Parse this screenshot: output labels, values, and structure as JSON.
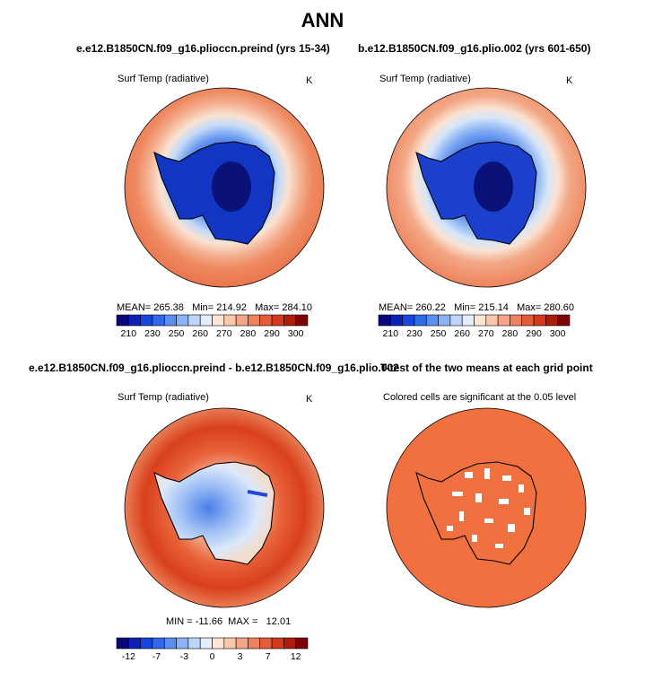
{
  "figure": {
    "title": "ANN"
  },
  "chart_data": [
    {
      "type": "heatmap",
      "projection": "south-polar-stereographic",
      "title": "e.e12.B1850CN.f09_g16.plioccn.preind (yrs 15-34)",
      "variable": "Surf Temp (radiative)",
      "units": "K",
      "stats_text": "MEAN= 265.38   Min= 214.92   Max= 284.10",
      "stats": {
        "mean": 265.38,
        "min": 214.92,
        "max": 284.1
      },
      "colorbar": {
        "tick_labels": [
          "210",
          "230",
          "250",
          "260",
          "270",
          "280",
          "290",
          "300"
        ],
        "colors": [
          "#08087a",
          "#0c22b4",
          "#1846dc",
          "#2f6ae8",
          "#5a8ff0",
          "#8cb2f5",
          "#bcd5f8",
          "#e4eefb",
          "#fbe6d8",
          "#f8c8ad",
          "#f4a686",
          "#ee8260",
          "#e65c3a",
          "#d63a1e",
          "#b01c0c",
          "#7a0606"
        ]
      }
    },
    {
      "type": "heatmap",
      "projection": "south-polar-stereographic",
      "title": "b.e12.B1850CN.f09_g16.plio.002 (yrs 601-650)",
      "variable": "Surf Temp (radiative)",
      "units": "K",
      "stats_text": "MEAN= 260.22   Min= 215.14   Max= 280.60",
      "stats": {
        "mean": 260.22,
        "min": 215.14,
        "max": 280.6
      },
      "colorbar": {
        "tick_labels": [
          "210",
          "230",
          "250",
          "260",
          "270",
          "280",
          "290",
          "300"
        ],
        "colors": [
          "#08087a",
          "#0c22b4",
          "#1846dc",
          "#2f6ae8",
          "#5a8ff0",
          "#8cb2f5",
          "#bcd5f8",
          "#e4eefb",
          "#fbe6d8",
          "#f8c8ad",
          "#f4a686",
          "#ee8260",
          "#e65c3a",
          "#d63a1e",
          "#b01c0c",
          "#7a0606"
        ]
      }
    },
    {
      "type": "heatmap",
      "projection": "south-polar-stereographic",
      "title": "e.e12.B1850CN.f09_g16.plioccn.preind - b.e12.B1850CN.f09_g16.plio.002",
      "variable": "Surf Temp (radiative)",
      "units": "K",
      "stats_text": "MIN = -11.66  MAX =   12.01",
      "stats": {
        "min": -11.66,
        "max": 12.01
      },
      "colorbar": {
        "tick_labels": [
          "-12",
          "-7",
          "-3",
          "0",
          "3",
          "7",
          "12"
        ],
        "colors": [
          "#08087a",
          "#0c22b4",
          "#1846dc",
          "#2f6ae8",
          "#5a8ff0",
          "#8cb2f5",
          "#bcd5f8",
          "#e4eefb",
          "#fbe6d8",
          "#f8c8ad",
          "#f4a686",
          "#ee8260",
          "#e65c3a",
          "#d63a1e",
          "#b01c0c",
          "#7a0606"
        ]
      }
    },
    {
      "type": "heatmap",
      "projection": "south-polar-stereographic",
      "title": "T-test of the two means at each grid point",
      "subtitle": "Colored cells are significant at the 0.05 level",
      "fill_color": "#f0703f"
    }
  ]
}
